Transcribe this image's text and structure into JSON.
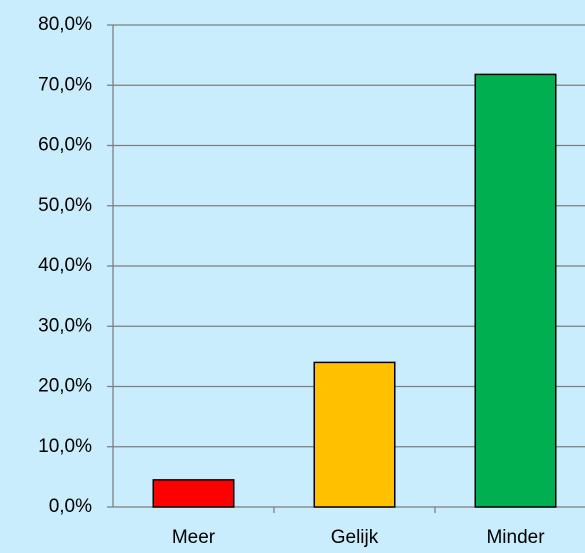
{
  "chart_data": {
    "type": "bar",
    "categories": [
      "Meer",
      "Gelijk",
      "Minder"
    ],
    "values": [
      4.5,
      24.0,
      71.8
    ],
    "colors": [
      "#ff0000",
      "#ffc000",
      "#00b050"
    ],
    "ylim": [
      0,
      80
    ],
    "yticks": [
      {
        "value": 0,
        "label": "0,0%"
      },
      {
        "value": 10,
        "label": "10,0%"
      },
      {
        "value": 20,
        "label": "20,0%"
      },
      {
        "value": 30,
        "label": "30,0%"
      },
      {
        "value": 40,
        "label": "40,0%"
      },
      {
        "value": 50,
        "label": "50,0%"
      },
      {
        "value": 60,
        "label": "60,0%"
      },
      {
        "value": 70,
        "label": "70,0%"
      },
      {
        "value": 80,
        "label": "80,0%"
      }
    ],
    "grid": true
  }
}
